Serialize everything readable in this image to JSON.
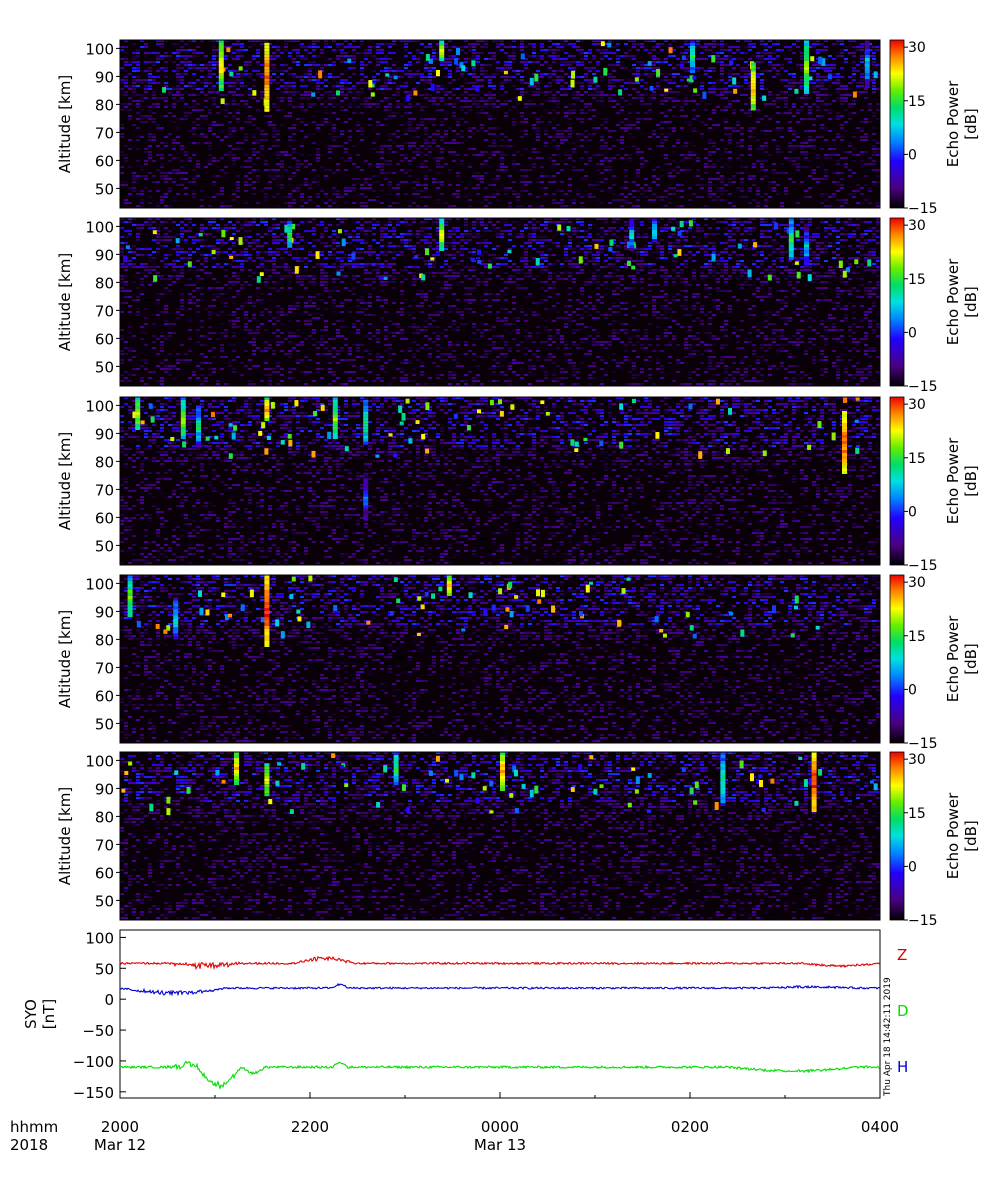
{
  "chart_data": [
    {
      "type": "heatmap",
      "ylabel": "Altitude [km]",
      "yticks": [
        50,
        60,
        70,
        80,
        90,
        100
      ],
      "ylim": [
        43,
        103
      ],
      "colorbar": {
        "label_line1": "Echo Power",
        "label_line2": "[dB]",
        "ticks": [
          30,
          15,
          0,
          -15
        ],
        "range": [
          -15,
          32
        ]
      },
      "echo_columns": [
        {
          "t": 0.13,
          "top": 103,
          "bottom": 85,
          "peak": 20
        },
        {
          "t": 0.19,
          "top": 102,
          "bottom": 78,
          "peak": 28
        },
        {
          "t": 0.42,
          "top": 103,
          "bottom": 96,
          "peak": 18
        },
        {
          "t": 0.75,
          "top": 103,
          "bottom": 92,
          "peak": 10
        },
        {
          "t": 0.83,
          "top": 95,
          "bottom": 78,
          "peak": 22
        },
        {
          "t": 0.9,
          "top": 103,
          "bottom": 84,
          "peak": 15
        },
        {
          "t": 0.98,
          "top": 103,
          "bottom": 86,
          "peak": 5
        }
      ]
    },
    {
      "type": "heatmap",
      "ylabel": "Altitude [km]",
      "yticks": [
        50,
        60,
        70,
        80,
        90,
        100
      ],
      "ylim": [
        43,
        103
      ],
      "colorbar": {
        "label_line1": "Echo Power",
        "label_line2": "[dB]",
        "ticks": [
          30,
          15,
          0,
          -15
        ],
        "range": [
          -15,
          32
        ]
      },
      "echo_columns": [
        {
          "t": 0.22,
          "top": 102,
          "bottom": 93,
          "peak": 12
        },
        {
          "t": 0.42,
          "top": 103,
          "bottom": 92,
          "peak": 18
        },
        {
          "t": 0.67,
          "top": 103,
          "bottom": 92,
          "peak": 5
        },
        {
          "t": 0.7,
          "top": 103,
          "bottom": 95,
          "peak": 8
        },
        {
          "t": 0.88,
          "top": 103,
          "bottom": 88,
          "peak": 10
        },
        {
          "t": 0.9,
          "top": 100,
          "bottom": 86,
          "peak": 5
        }
      ]
    },
    {
      "type": "heatmap",
      "ylabel": "Altitude [km]",
      "yticks": [
        50,
        60,
        70,
        80,
        90,
        100
      ],
      "ylim": [
        43,
        103
      ],
      "colorbar": {
        "label_line1": "Echo Power",
        "label_line2": "[dB]",
        "ticks": [
          30,
          15,
          0,
          -15
        ],
        "range": [
          -15,
          32
        ]
      },
      "echo_columns": [
        {
          "t": 0.02,
          "top": 103,
          "bottom": 92,
          "peak": 18
        },
        {
          "t": 0.08,
          "top": 103,
          "bottom": 88,
          "peak": 15
        },
        {
          "t": 0.1,
          "top": 100,
          "bottom": 86,
          "peak": 8
        },
        {
          "t": 0.19,
          "top": 103,
          "bottom": 95,
          "peak": 25
        },
        {
          "t": 0.28,
          "top": 103,
          "bottom": 88,
          "peak": 15
        },
        {
          "t": 0.32,
          "top": 102,
          "bottom": 86,
          "peak": 10
        },
        {
          "t": 0.32,
          "top": 76,
          "bottom": 59,
          "peak": 2
        },
        {
          "t": 0.95,
          "top": 98,
          "bottom": 76,
          "peak": 28
        }
      ]
    },
    {
      "type": "heatmap",
      "ylabel": "Altitude [km]",
      "yticks": [
        50,
        60,
        70,
        80,
        90,
        100
      ],
      "ylim": [
        43,
        103
      ],
      "colorbar": {
        "label_line1": "Echo Power",
        "label_line2": "[dB]",
        "ticks": [
          30,
          15,
          0,
          -15
        ],
        "range": [
          -15,
          32
        ]
      },
      "echo_columns": [
        {
          "t": 0.01,
          "top": 103,
          "bottom": 88,
          "peak": 15
        },
        {
          "t": 0.07,
          "top": 95,
          "bottom": 80,
          "peak": 8
        },
        {
          "t": 0.19,
          "top": 103,
          "bottom": 78,
          "peak": 30
        },
        {
          "t": 0.43,
          "top": 103,
          "bottom": 96,
          "peak": 25
        }
      ]
    },
    {
      "type": "heatmap",
      "ylabel": "Altitude [km]",
      "yticks": [
        50,
        60,
        70,
        80,
        90,
        100
      ],
      "ylim": [
        43,
        103
      ],
      "colorbar": {
        "label_line1": "Echo Power",
        "label_line2": "[dB]",
        "ticks": [
          30,
          15,
          0,
          -15
        ],
        "range": [
          -15,
          32
        ]
      },
      "echo_columns": [
        {
          "t": 0.15,
          "top": 103,
          "bottom": 92,
          "peak": 22
        },
        {
          "t": 0.19,
          "top": 99,
          "bottom": 88,
          "peak": 20
        },
        {
          "t": 0.36,
          "top": 103,
          "bottom": 92,
          "peak": 12
        },
        {
          "t": 0.5,
          "top": 103,
          "bottom": 90,
          "peak": 25
        },
        {
          "t": 0.79,
          "top": 103,
          "bottom": 84,
          "peak": 10
        },
        {
          "t": 0.91,
          "top": 103,
          "bottom": 82,
          "peak": 30
        }
      ]
    },
    {
      "type": "line",
      "ylabel_line1": "SYO",
      "ylabel_line2": "[nT]",
      "yticks": [
        100,
        50,
        0,
        -50,
        -100,
        -150
      ],
      "ylim": [
        -160,
        112
      ],
      "series": [
        {
          "name": "Z",
          "color": "#dd0000",
          "baseline": 58,
          "noise": 1.5,
          "features": [
            [
              0.06,
              0.17,
              -3,
              5
            ],
            [
              0.23,
              0.31,
              8,
              3
            ],
            [
              0.9,
              1.0,
              -4,
              1
            ]
          ]
        },
        {
          "name": "D",
          "color": "#00dd00",
          "baseline": -110,
          "noise": 1.8,
          "features": [
            [
              0.06,
              0.12,
              3,
              6
            ],
            [
              0.1,
              0.16,
              -28,
              5
            ],
            [
              0.16,
              0.19,
              -10,
              2
            ],
            [
              0.28,
              0.3,
              8,
              1
            ],
            [
              0.8,
              0.97,
              -6,
              1
            ]
          ]
        },
        {
          "name": "H",
          "color": "#0000cc",
          "baseline": 18,
          "noise": 1.5,
          "features": [
            [
              0.0,
              0.14,
              -8,
              3
            ],
            [
              0.28,
              0.3,
              6,
              1
            ],
            [
              0.85,
              0.97,
              2,
              1
            ]
          ]
        }
      ]
    }
  ],
  "xaxis": {
    "row1_label": "hhmm",
    "row2_label": "2018",
    "ticks": [
      {
        "label": "2000",
        "date": "Mar 12"
      },
      {
        "label": "2200",
        "date": ""
      },
      {
        "label": "0000",
        "date": "Mar 13"
      },
      {
        "label": "0200",
        "date": ""
      },
      {
        "label": "0400",
        "date": ""
      }
    ]
  },
  "timestamp": "Thu Apr 18 14:42:11 2019",
  "colors": {
    "z_label": "#dd0000",
    "d_label": "#00dd00",
    "h_label": "#0000cc"
  }
}
